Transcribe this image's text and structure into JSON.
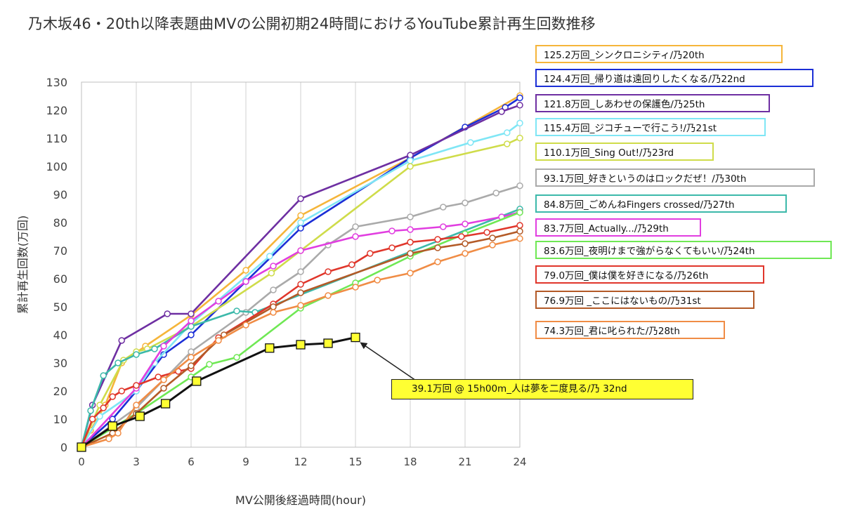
{
  "title": "乃木坂46・20th以降表題曲MVの公開初期24時間におけるYouTube累計再生回数推移",
  "chart_data": {
    "type": "line",
    "title": "乃木坂46・20th以降表題曲MVの公開初期24時間におけるYouTube累計再生回数推移",
    "xlabel": "MV公開後経過時間(hour)",
    "ylabel": "累計再生回数(万回)",
    "xlim": [
      0,
      24
    ],
    "ylim": [
      0,
      130
    ],
    "xticks": [
      0,
      3,
      6,
      9,
      12,
      15,
      18,
      21,
      24
    ],
    "yticks": [
      0,
      10,
      20,
      30,
      40,
      50,
      60,
      70,
      80,
      90,
      100,
      110,
      120,
      130
    ],
    "grid": "vertical",
    "legend_placement": "right",
    "series": [
      {
        "name": "125.2万回_シンクロニシティ/乃20th",
        "color": "#f5b53a",
        "x": [
          0,
          0.5,
          1.3,
          2.2,
          3.5,
          6,
          9,
          12,
          18,
          24
        ],
        "y": [
          0,
          6,
          15,
          30,
          36,
          47,
          63,
          82.5,
          103,
          125.2
        ]
      },
      {
        "name": "124.4万回_帰り道は遠回りしたくなる/乃22nd",
        "color": "#1b2ed6",
        "x": [
          0,
          1.7,
          3,
          4.5,
          6,
          9,
          12,
          18,
          21,
          23.2,
          24
        ],
        "y": [
          0,
          10,
          20,
          33,
          40,
          59,
          78,
          103,
          114,
          121,
          124.4
        ]
      },
      {
        "name": "121.8万回_しあわせの保護色/乃25th",
        "color": "#6e2fa2",
        "x": [
          0,
          0.6,
          2.2,
          4.7,
          6,
          12,
          18,
          23,
          24
        ],
        "y": [
          0,
          15,
          38,
          47.5,
          47.5,
          88.5,
          104,
          119.5,
          121.8
        ]
      },
      {
        "name": "115.4万回_ジコチューで行こう!/乃21st",
        "color": "#7fe6f5",
        "x": [
          0,
          1,
          3,
          4,
          6,
          10.3,
          12,
          18,
          21.3,
          23.3,
          24
        ],
        "y": [
          0,
          11,
          20,
          30,
          44,
          68,
          80,
          102,
          108.5,
          112,
          115.4
        ]
      },
      {
        "name": "110.1万回_Sing Out!/乃23rd",
        "color": "#cfdc4a",
        "x": [
          0,
          1,
          2.3,
          3,
          3.6,
          6,
          10.4,
          12,
          18,
          23.3,
          24
        ],
        "y": [
          0,
          15,
          31,
          34,
          35,
          43,
          62,
          70,
          100,
          108,
          110.1
        ]
      },
      {
        "name": "93.1万回_好きというのはロックだぜ！/乃30th",
        "color": "#aaaaaa",
        "x": [
          0,
          3,
          6,
          9,
          10.5,
          12,
          13.5,
          15,
          18,
          19.8,
          21,
          22.7,
          24
        ],
        "y": [
          0,
          14,
          34,
          48,
          56,
          62.5,
          72,
          78.5,
          82,
          85.5,
          87,
          90.5,
          93.1
        ]
      },
      {
        "name": "84.8万回_ごめんねFingers crossed/乃27th",
        "color": "#3cb9aa",
        "x": [
          0,
          0.5,
          1.2,
          2,
          3,
          4,
          6,
          8.5,
          9.5,
          24
        ],
        "y": [
          0,
          13,
          25.5,
          30,
          33,
          35,
          43,
          48.5,
          48,
          84.8
        ]
      },
      {
        "name": "83.7万回_Actually.../乃29th",
        "color": "#e13ee0",
        "x": [
          0,
          3,
          4.5,
          6,
          7.5,
          9,
          10.5,
          12,
          15,
          17,
          18,
          19.8,
          21,
          23,
          24
        ],
        "y": [
          0,
          21,
          36,
          45,
          52,
          59,
          64.5,
          70,
          75,
          77,
          77.5,
          78.5,
          79.5,
          82,
          83.7
        ]
      },
      {
        "name": "83.6万回_夜明けまで強がらなくてもいい/乃24th",
        "color": "#6fe854",
        "x": [
          0,
          3,
          6,
          7,
          8.5,
          12,
          15,
          18,
          21,
          24
        ],
        "y": [
          0,
          12,
          25,
          29.5,
          32,
          49.5,
          58.5,
          68,
          76,
          83.6
        ]
      },
      {
        "name": "79.0万回_僕は僕を好きになる/乃26th",
        "color": "#e0362b",
        "x": [
          0,
          0.6,
          1.2,
          1.7,
          2.2,
          3,
          4.2,
          5.3,
          6,
          7.5,
          10.5,
          12,
          13.5,
          14.8,
          15.8,
          17,
          18,
          19.5,
          20.8,
          22.2,
          24
        ],
        "y": [
          0,
          10,
          14,
          18,
          20,
          22,
          25,
          27,
          28,
          39,
          51,
          58,
          62.5,
          65,
          69,
          71,
          73,
          74,
          75,
          76.5,
          79.0
        ]
      },
      {
        "name": "76.9万回 _ここにはないもの/乃31st",
        "color": "#b35a27",
        "x": [
          0,
          1.7,
          3,
          4.5,
          6,
          7.8,
          10.5,
          12,
          18,
          19.5,
          21,
          22.5,
          24
        ],
        "y": [
          0,
          5,
          12,
          21,
          29,
          40,
          50,
          55,
          69,
          71,
          72.5,
          74.5,
          76.9
        ]
      },
      {
        "name": "74.3万回_君に叱られた/乃28th",
        "color": "#f08c45",
        "x": [
          0,
          1.5,
          2,
          3,
          4.5,
          6,
          7.5,
          9,
          10.5,
          12,
          13.5,
          15,
          16.2,
          18,
          19.5,
          21,
          22.5,
          24
        ],
        "y": [
          0,
          3,
          5,
          15,
          24,
          32,
          38,
          43.5,
          48,
          50.5,
          54,
          57,
          59.5,
          62,
          66,
          69,
          72,
          74.3
        ]
      },
      {
        "name": "39.1万回 @ 15h00m_人は夢を二度見る/乃 32nd",
        "color": "#111111",
        "x": [
          0,
          1.7,
          3.2,
          4.6,
          6.3,
          10.3,
          12,
          13.5,
          15
        ],
        "y": [
          0,
          7.5,
          11,
          15.5,
          23.5,
          35.3,
          36.5,
          37,
          39.1
        ]
      }
    ],
    "annotation": {
      "text": "39.1万回 @ 15h00m_人は夢を二度見る/乃 32nd",
      "x": 15,
      "y": 39.1
    }
  }
}
